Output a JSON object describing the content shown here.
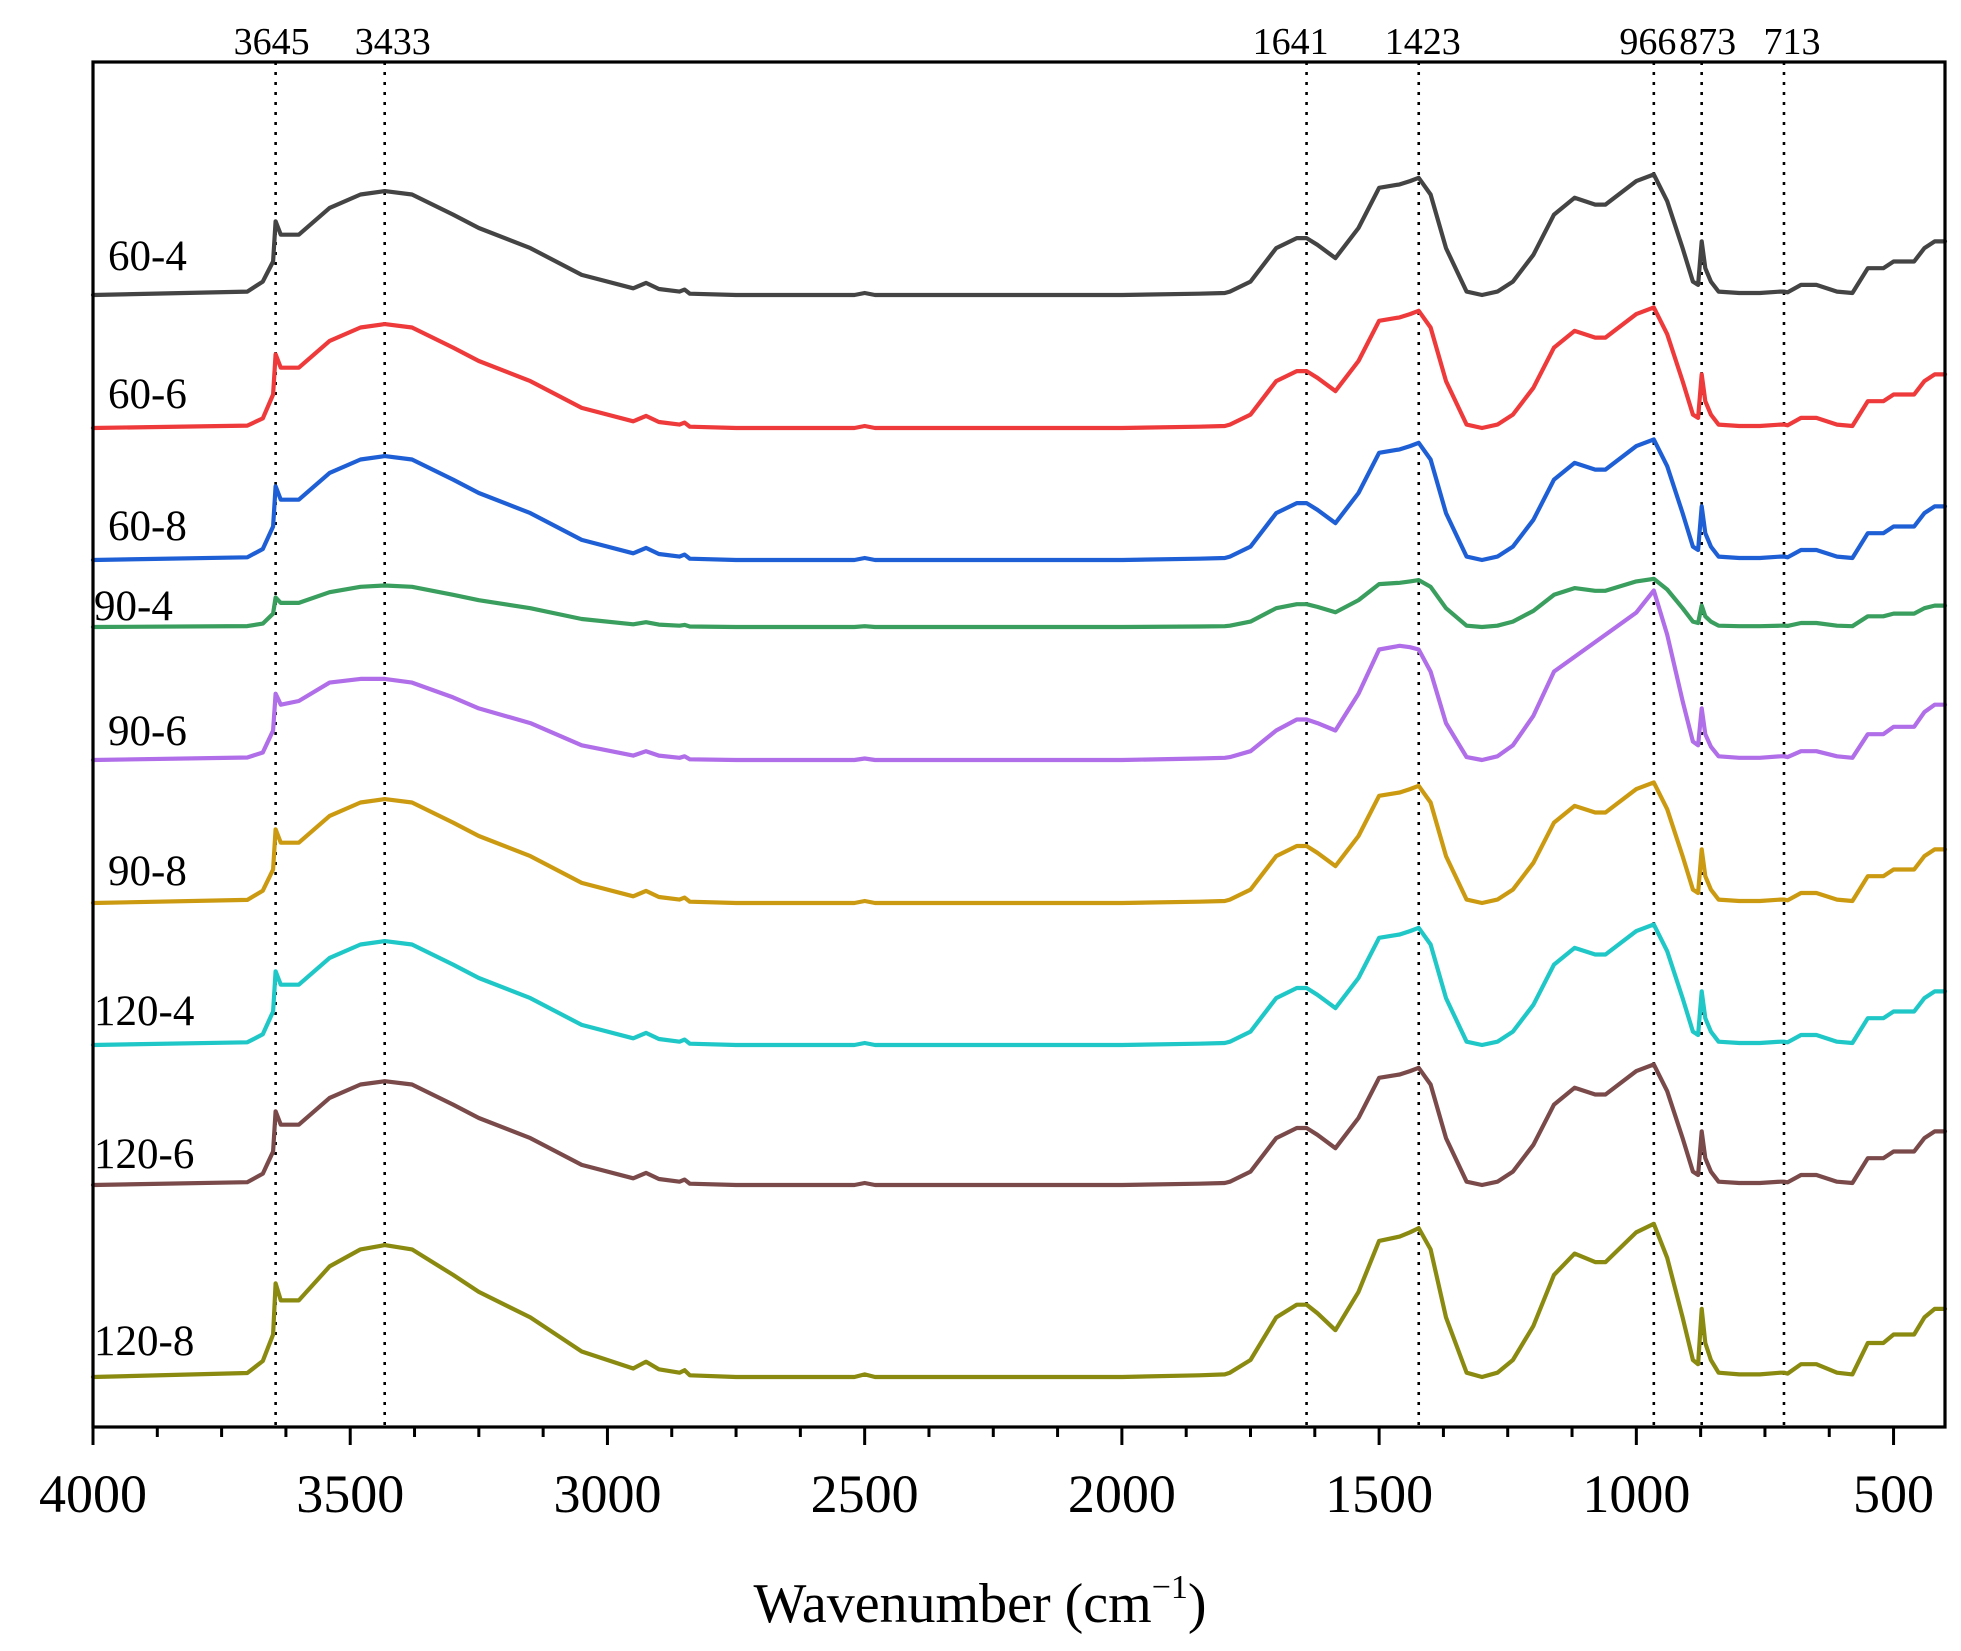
{
  "chart_data": {
    "type": "line",
    "title": "",
    "xlabel": "Wavenumber (cm",
    "xlabel_sup": "−1",
    "xlabel_close": ")",
    "ylabel": "",
    "xlim": [
      4000,
      400
    ],
    "x_reversed": true,
    "grid": false,
    "x_ticks": [
      {
        "value": 4000,
        "label": "4000"
      },
      {
        "value": 3500,
        "label": "3500"
      },
      {
        "value": 3000,
        "label": "3000"
      },
      {
        "value": 2500,
        "label": "2500"
      },
      {
        "value": 2000,
        "label": "2000"
      },
      {
        "value": 1500,
        "label": "1500"
      },
      {
        "value": 1000,
        "label": "1000"
      },
      {
        "value": 500,
        "label": "500"
      }
    ],
    "peaks": [
      {
        "value": 3645,
        "label": "3645"
      },
      {
        "value": 3433,
        "label": "3433"
      },
      {
        "value": 1641,
        "label": "1641"
      },
      {
        "value": 1423,
        "label": "1423"
      },
      {
        "value": 966,
        "label": "966"
      },
      {
        "value": 873,
        "label": "873"
      },
      {
        "value": 713,
        "label": "713"
      }
    ],
    "shape_x": [
      4000,
      3700,
      3670,
      3650,
      3645,
      3635,
      3600,
      3540,
      3480,
      3433,
      3380,
      3300,
      3250,
      3150,
      3050,
      2950,
      2925,
      2900,
      2860,
      2850,
      2840,
      2750,
      2600,
      2520,
      2500,
      2480,
      2400,
      2200,
      2000,
      1850,
      1800,
      1790,
      1750,
      1700,
      1660,
      1641,
      1620,
      1585,
      1540,
      1500,
      1460,
      1440,
      1423,
      1400,
      1370,
      1330,
      1300,
      1270,
      1240,
      1200,
      1160,
      1120,
      1080,
      1060,
      1000,
      966,
      940,
      910,
      890,
      880,
      873,
      866,
      855,
      840,
      800,
      760,
      720,
      713,
      706,
      680,
      650,
      610,
      580,
      550,
      520,
      500,
      480,
      460,
      440,
      420,
      410,
      400
    ],
    "series": [
      {
        "name": "60-4",
        "color": "#444444",
        "baseline": 0,
        "scale": 1.0,
        "shoulder": 1.0,
        "values": [
          0,
          0.5,
          2,
          5,
          11,
          9,
          9,
          13,
          15,
          15.5,
          15,
          12,
          10,
          7,
          3,
          1,
          1.8,
          0.9,
          0.5,
          0.8,
          0.2,
          0,
          0,
          0,
          0.3,
          0,
          0,
          0,
          0,
          0.2,
          0.3,
          0.5,
          2,
          7,
          8.5,
          8.5,
          7.5,
          5.5,
          10,
          16,
          16.5,
          17,
          17.5,
          15,
          7,
          0.5,
          0,
          0.5,
          2,
          6,
          12,
          14.5,
          13.5,
          13.5,
          17,
          18,
          14,
          7,
          2,
          1.5,
          8,
          4,
          2,
          0.5,
          0.3,
          0.3,
          0.5,
          0.5,
          0.4,
          1.5,
          1.5,
          0.5,
          0.3,
          4,
          4,
          5,
          5,
          5,
          7,
          8,
          8,
          8
        ]
      },
      {
        "name": "60-6",
        "color": "#ee3a3a",
        "baseline": 0,
        "scale": 1.0,
        "shoulder": 0.3,
        "values": [
          0,
          0.5,
          2,
          5,
          11,
          9,
          9,
          13,
          15,
          15.5,
          15,
          12,
          10,
          7,
          3,
          1,
          1.8,
          0.9,
          0.5,
          0.8,
          0.2,
          0,
          0,
          0,
          0.3,
          0,
          0,
          0,
          0,
          0.2,
          0.3,
          0.5,
          2,
          7,
          8.5,
          8.5,
          7.5,
          5.5,
          10,
          16,
          16.5,
          17,
          17.5,
          15,
          7,
          0.5,
          0,
          0.5,
          2,
          6,
          12,
          14.5,
          13.5,
          13.5,
          17,
          18,
          14,
          7,
          2,
          1.5,
          8,
          4,
          2,
          0.5,
          0.3,
          0.3,
          0.5,
          0.5,
          0.4,
          1.5,
          1.5,
          0.5,
          0.3,
          4,
          4,
          5,
          5,
          5,
          7,
          8,
          8,
          8
        ]
      },
      {
        "name": "60-8",
        "color": "#1f5fd6",
        "baseline": 0,
        "scale": 1.0,
        "shoulder": 0.55,
        "values": [
          0,
          0.5,
          2,
          5,
          11,
          9,
          9,
          13,
          15,
          15.5,
          15,
          12,
          10,
          7,
          3,
          1,
          1.8,
          0.9,
          0.5,
          0.8,
          0.2,
          0,
          0,
          0,
          0.3,
          0,
          0,
          0,
          0,
          0.2,
          0.3,
          0.5,
          2,
          7,
          8.5,
          8.5,
          7.5,
          5.5,
          10,
          16,
          16.5,
          17,
          17.5,
          15,
          7,
          0.5,
          0,
          0.5,
          2,
          6,
          12,
          14.5,
          13.5,
          13.5,
          17,
          18,
          14,
          7,
          2,
          1.5,
          8,
          4,
          2,
          0.5,
          0.3,
          0.3,
          0.5,
          0.5,
          0.4,
          1.5,
          1.5,
          0.5,
          0.3,
          4,
          4,
          5,
          5,
          5,
          7,
          8,
          8,
          8
        ]
      },
      {
        "name": "90-4",
        "color": "#3a9e5e",
        "baseline": 0,
        "scale": 0.4,
        "shoulder": 0.1,
        "values": [
          0,
          0.5,
          2,
          5,
          11,
          9,
          9,
          13,
          15,
          15.5,
          15,
          12,
          10,
          7,
          3,
          1,
          1.8,
          0.9,
          0.5,
          0.8,
          0.2,
          0,
          0,
          0,
          0.3,
          0,
          0,
          0,
          0,
          0.2,
          0.3,
          0.5,
          2,
          7,
          8.5,
          8.5,
          7.5,
          5.5,
          10,
          16,
          16.5,
          17,
          17.5,
          15,
          7,
          0.5,
          0,
          0.5,
          2,
          6,
          12,
          14.5,
          13.5,
          13.5,
          17,
          18,
          14,
          7,
          2,
          1.5,
          8,
          4,
          2,
          0.5,
          0.3,
          0.3,
          0.5,
          0.5,
          0.4,
          1.5,
          1.5,
          0.5,
          0.3,
          4,
          4,
          5,
          5,
          5,
          7,
          8,
          8,
          8
        ]
      },
      {
        "name": "90-6",
        "color": "#b06ee8",
        "baseline": 0,
        "scale": 1.1,
        "shoulder": 0.2,
        "values": [
          0,
          0.5,
          1.5,
          4,
          9,
          7.5,
          8,
          10.5,
          11,
          11,
          10.5,
          8.5,
          7,
          5,
          2,
          0.6,
          1.2,
          0.6,
          0.3,
          0.5,
          0.1,
          0,
          0,
          0,
          0.2,
          0,
          0,
          0,
          0,
          0.2,
          0.3,
          0.4,
          1.2,
          4,
          5.5,
          5.5,
          5,
          4,
          9,
          15,
          15.5,
          15.3,
          15,
          12,
          5,
          0.4,
          0,
          0.5,
          2,
          6,
          12,
          14,
          16,
          17,
          20,
          23,
          17,
          8,
          2.5,
          2,
          7,
          3.5,
          1.8,
          0.5,
          0.3,
          0.3,
          0.5,
          0.5,
          0.4,
          1.2,
          1.2,
          0.5,
          0.3,
          3.5,
          3.5,
          4.5,
          4.5,
          4.5,
          6.5,
          7.5,
          7.5,
          7.5
        ]
      },
      {
        "name": "90-8",
        "color": "#cc9a10",
        "baseline": 0,
        "scale": 1.0,
        "shoulder": 0.8,
        "values": [
          0,
          0.5,
          2,
          5,
          11,
          9,
          9,
          13,
          15,
          15.5,
          15,
          12,
          10,
          7,
          3,
          1,
          1.8,
          0.9,
          0.5,
          0.8,
          0.2,
          0,
          0,
          0,
          0.3,
          0,
          0,
          0,
          0,
          0.2,
          0.3,
          0.5,
          2,
          7,
          8.5,
          8.5,
          7.5,
          5.5,
          10,
          16,
          16.5,
          17,
          17.5,
          15,
          7,
          0.5,
          0,
          0.5,
          2,
          6,
          12,
          14.5,
          13.5,
          13.5,
          17,
          18,
          14,
          7,
          2,
          1.5,
          8,
          4,
          2,
          0.5,
          0.3,
          0.3,
          0.5,
          0.5,
          0.4,
          1.5,
          1.5,
          0.5,
          0.3,
          4,
          4,
          5,
          5,
          5,
          7,
          8,
          8,
          8
        ]
      },
      {
        "name": "120-4",
        "color": "#1fc7c7",
        "baseline": 0,
        "scale": 1.0,
        "shoulder": 0.5,
        "values": [
          0,
          0.5,
          2,
          5,
          11,
          9,
          9,
          13,
          15,
          15.5,
          15,
          12,
          10,
          7,
          3,
          1,
          1.8,
          0.9,
          0.5,
          0.8,
          0.2,
          0,
          0,
          0,
          0.3,
          0,
          0,
          0,
          0,
          0.2,
          0.3,
          0.5,
          2,
          7,
          8.5,
          8.5,
          7.5,
          5.5,
          10,
          16,
          16.5,
          17,
          17.5,
          15,
          7,
          0.5,
          0,
          0.5,
          2,
          6,
          12,
          14.5,
          13.5,
          13.5,
          17,
          18,
          14,
          7,
          2,
          1.5,
          8,
          4,
          2,
          0.5,
          0.3,
          0.3,
          0.5,
          0.5,
          0.4,
          1.5,
          1.5,
          0.5,
          0.3,
          4,
          4,
          5,
          5,
          5,
          7,
          8,
          8,
          8
        ]
      },
      {
        "name": "120-6",
        "color": "#7a4a4a",
        "baseline": 0,
        "scale": 1.0,
        "shoulder": 0.6,
        "values": [
          0,
          0.5,
          2,
          5,
          11,
          9,
          9,
          13,
          15,
          15.5,
          15,
          12,
          10,
          7,
          3,
          1,
          1.8,
          0.9,
          0.5,
          0.8,
          0.2,
          0,
          0,
          0,
          0.3,
          0,
          0,
          0,
          0,
          0.2,
          0.3,
          0.5,
          2,
          7,
          8.5,
          8.5,
          7.5,
          5.5,
          10,
          16,
          16.5,
          17,
          17.5,
          15,
          7,
          0.5,
          0,
          0.5,
          2,
          6,
          12,
          14.5,
          13.5,
          13.5,
          17,
          18,
          14,
          7,
          2,
          1.5,
          8,
          4,
          2,
          0.5,
          0.3,
          0.3,
          0.5,
          0.5,
          0.4,
          1.5,
          1.5,
          0.5,
          0.3,
          4,
          4,
          5,
          5,
          5,
          7,
          8,
          8,
          8
        ]
      },
      {
        "name": "120-8",
        "color": "#8a8a10",
        "baseline": 0,
        "scale": 1.27,
        "shoulder": 0.85,
        "values": [
          0,
          0.5,
          2,
          5,
          11,
          9,
          9,
          13,
          15,
          15.5,
          15,
          12,
          10,
          7,
          3,
          1,
          1.8,
          0.9,
          0.5,
          0.8,
          0.2,
          0,
          0,
          0,
          0.3,
          0,
          0,
          0,
          0,
          0.2,
          0.3,
          0.5,
          2,
          7,
          8.5,
          8.5,
          7.5,
          5.5,
          10,
          16,
          16.5,
          17,
          17.5,
          15,
          7,
          0.5,
          0,
          0.5,
          2,
          6,
          12,
          14.5,
          13.5,
          13.5,
          17,
          18,
          14,
          7,
          2,
          1.5,
          8,
          4,
          2,
          0.5,
          0.3,
          0.3,
          0.5,
          0.5,
          0.4,
          1.5,
          1.5,
          0.5,
          0.3,
          4,
          4,
          5,
          5,
          5,
          7,
          8,
          8,
          8
        ]
      }
    ]
  }
}
